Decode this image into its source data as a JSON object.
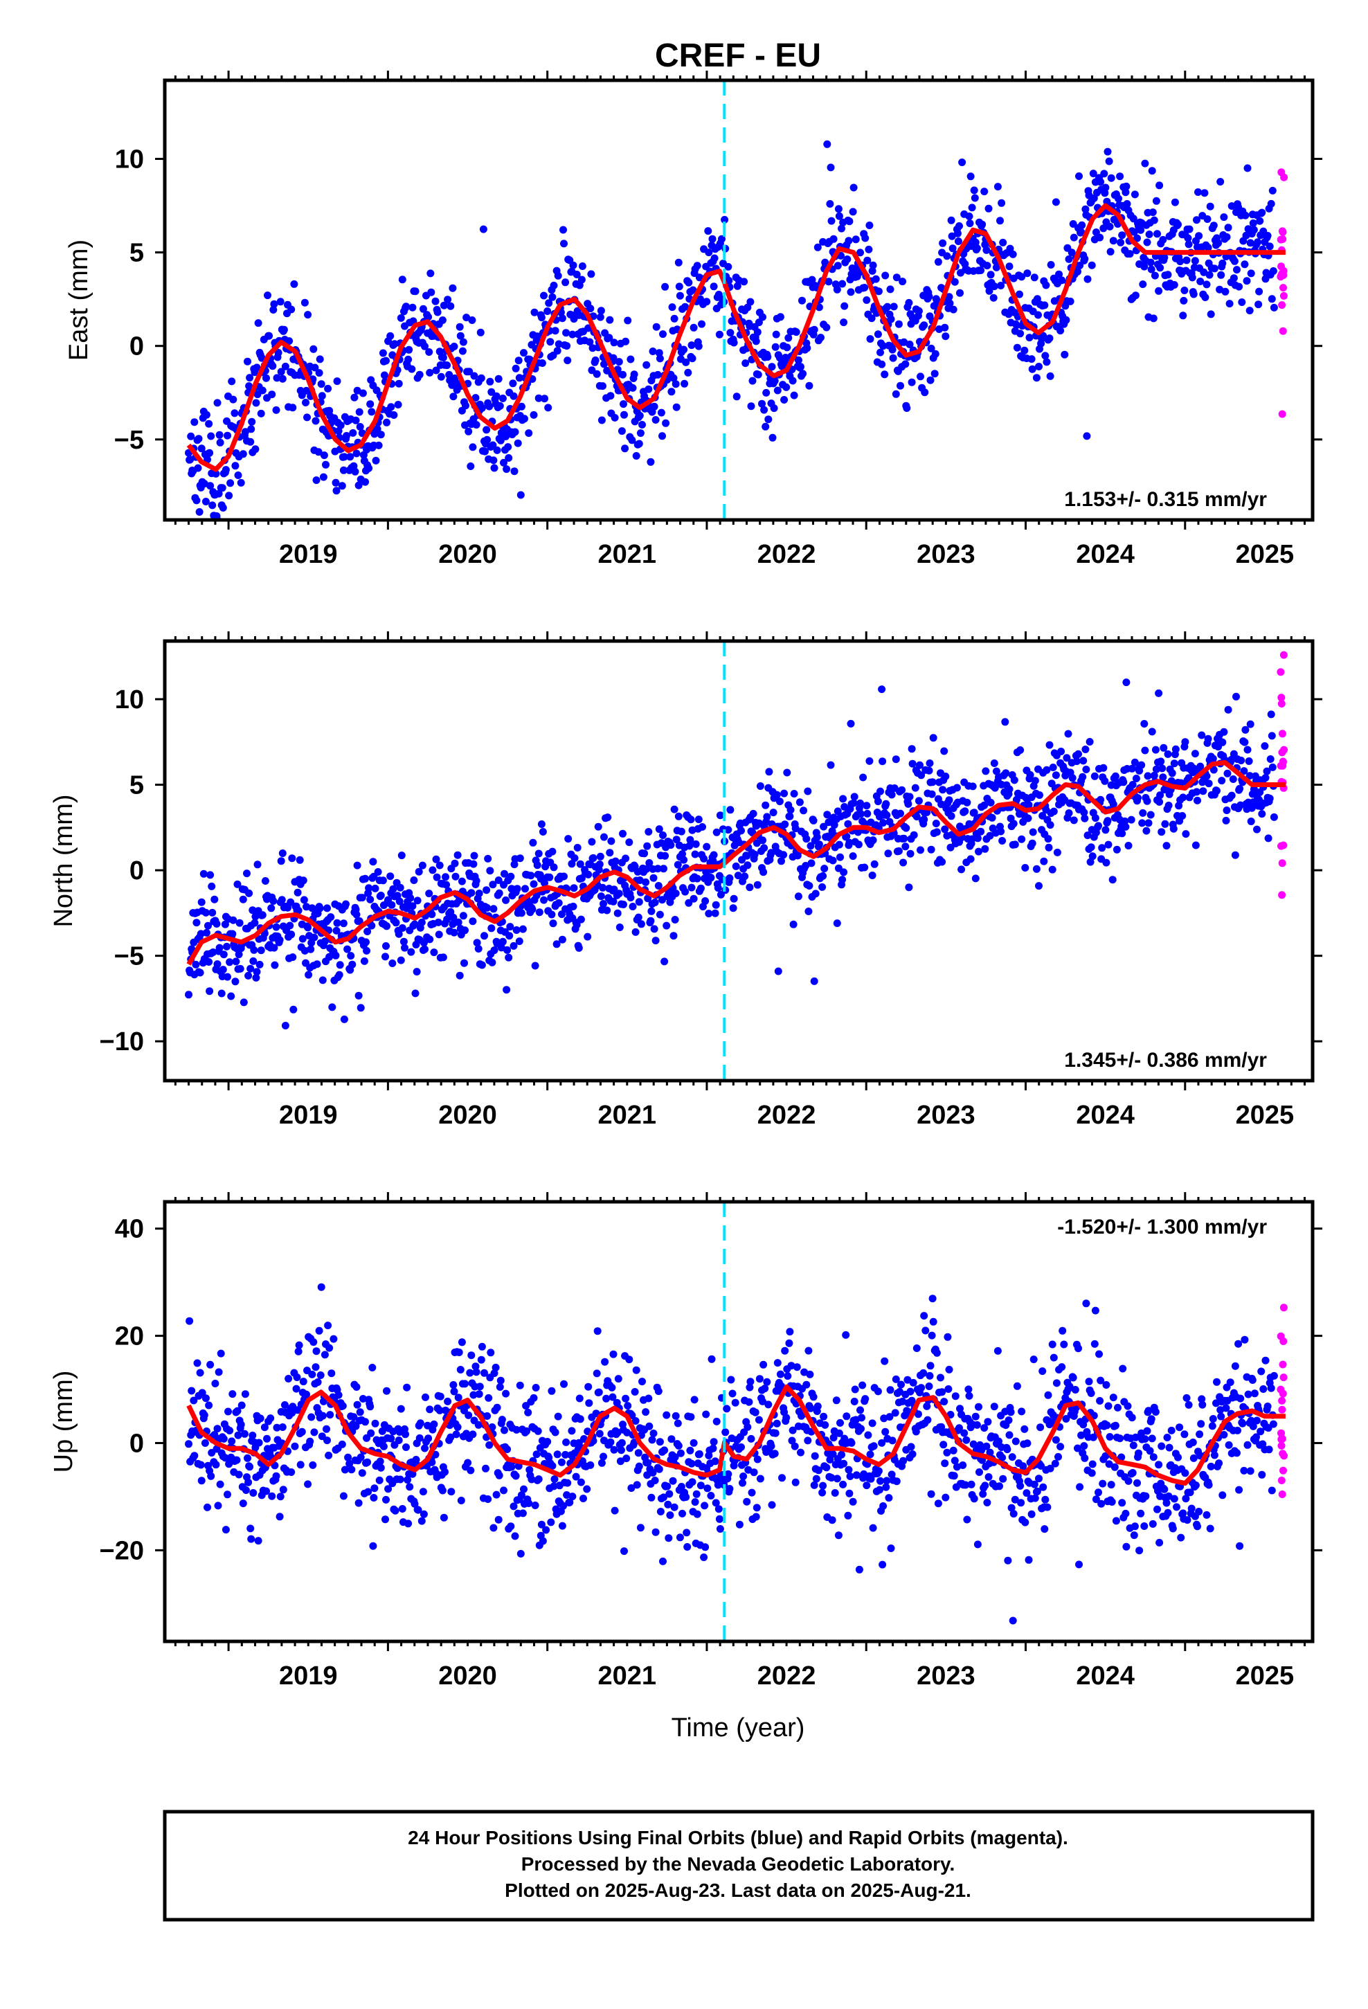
{
  "title": "CREF - EU",
  "xlabel": "Time (year)",
  "footer": {
    "line1": "24 Hour Positions Using Final Orbits (blue) and Rapid Orbits (magenta).",
    "line2": "Processed by the Nevada Geodetic Laboratory.",
    "line3": "Plotted on 2025-Aug-23. Last data on 2025-Aug-21."
  },
  "colors": {
    "final": "#0000ff",
    "rapid": "#ff00ff",
    "model": "#ff0000",
    "event": "#00e5ff"
  },
  "chart_data": [
    {
      "type": "scatter",
      "ylabel": "East (mm)",
      "rate": "1.153+/- 0.315 mm/yr",
      "xlim": [
        2018.6,
        2025.8
      ],
      "ylim": [
        -9.3,
        14.2
      ],
      "xticks": [
        2019,
        2020,
        2021,
        2022,
        2023,
        2024,
        2025
      ],
      "yticks": [
        -5,
        0,
        5,
        10
      ],
      "event_x": 2022.11,
      "model": {
        "x": [
          2018.75,
          2018.83,
          2018.92,
          2019.0,
          2019.08,
          2019.17,
          2019.25,
          2019.33,
          2019.42,
          2019.5,
          2019.58,
          2019.67,
          2019.75,
          2019.83,
          2019.92,
          2020.0,
          2020.08,
          2020.17,
          2020.25,
          2020.33,
          2020.42,
          2020.5,
          2020.58,
          2020.67,
          2020.75,
          2020.83,
          2020.92,
          2021.0,
          2021.08,
          2021.17,
          2021.25,
          2021.33,
          2021.42,
          2021.5,
          2021.58,
          2021.67,
          2021.75,
          2021.83,
          2021.92,
          2022.0,
          2022.08,
          2022.11,
          2022.17,
          2022.25,
          2022.33,
          2022.42,
          2022.5,
          2022.58,
          2022.67,
          2022.75,
          2022.83,
          2022.92,
          2023.0,
          2023.08,
          2023.17,
          2023.25,
          2023.33,
          2023.42,
          2023.5,
          2023.58,
          2023.67,
          2023.75,
          2023.83,
          2023.92,
          2024.0,
          2024.08,
          2024.17,
          2024.25,
          2024.33,
          2024.42,
          2024.5,
          2024.58,
          2024.67,
          2024.75,
          2024.83,
          2024.92,
          2025.0,
          2025.08,
          2025.17,
          2025.25,
          2025.33,
          2025.42,
          2025.5,
          2025.58,
          2025.63
        ],
        "y": [
          -5.3,
          -6.2,
          -6.6,
          -5.9,
          -4.2,
          -2.0,
          -0.5,
          0.2,
          -0.3,
          -1.8,
          -3.6,
          -5.0,
          -5.6,
          -5.3,
          -4.0,
          -2.0,
          -0.1,
          1.1,
          1.3,
          0.5,
          -1.0,
          -2.6,
          -3.8,
          -4.4,
          -4.0,
          -2.7,
          -0.8,
          1.0,
          2.2,
          2.5,
          1.7,
          0.2,
          -1.5,
          -2.8,
          -3.3,
          -2.8,
          -1.3,
          0.6,
          2.5,
          3.8,
          4.0,
          3.4,
          1.9,
          0.3,
          -1.0,
          -1.6,
          -1.3,
          0.0,
          2.0,
          4.0,
          5.2,
          5.0,
          3.8,
          2.0,
          0.3,
          -0.5,
          -0.3,
          1.0,
          3.0,
          5.0,
          6.2,
          6.0,
          4.7,
          2.8,
          1.2,
          0.7,
          1.3,
          3.0,
          5.0,
          6.8,
          7.5,
          7.0,
          5.6,
          5.0,
          5.0,
          5.0,
          5.0,
          5.0,
          5.0,
          5.0,
          5.0,
          5.0,
          5.0,
          5.0,
          5.0
        ]
      }
    },
    {
      "type": "scatter",
      "ylabel": "North (mm)",
      "rate": "1.345+/- 0.386 mm/yr",
      "xlim": [
        2018.6,
        2025.8
      ],
      "ylim": [
        -12.3,
        13.4
      ],
      "xticks": [
        2019,
        2020,
        2021,
        2022,
        2023,
        2024,
        2025
      ],
      "yticks": [
        -10,
        -5,
        0,
        5,
        10
      ],
      "event_x": 2022.11,
      "model": {
        "x": [
          2018.75,
          2018.83,
          2018.92,
          2019.0,
          2019.08,
          2019.17,
          2019.25,
          2019.33,
          2019.42,
          2019.5,
          2019.58,
          2019.67,
          2019.75,
          2019.83,
          2019.92,
          2020.0,
          2020.08,
          2020.17,
          2020.25,
          2020.33,
          2020.42,
          2020.5,
          2020.58,
          2020.67,
          2020.75,
          2020.83,
          2020.92,
          2021.0,
          2021.08,
          2021.17,
          2021.25,
          2021.33,
          2021.42,
          2021.5,
          2021.58,
          2021.67,
          2021.75,
          2021.83,
          2021.92,
          2022.0,
          2022.08,
          2022.11,
          2022.17,
          2022.25,
          2022.33,
          2022.42,
          2022.5,
          2022.58,
          2022.67,
          2022.75,
          2022.83,
          2022.92,
          2023.0,
          2023.08,
          2023.17,
          2023.25,
          2023.33,
          2023.42,
          2023.5,
          2023.58,
          2023.67,
          2023.75,
          2023.83,
          2023.92,
          2024.0,
          2024.08,
          2024.17,
          2024.25,
          2024.33,
          2024.42,
          2024.5,
          2024.58,
          2024.67,
          2024.75,
          2024.83,
          2024.92,
          2025.0,
          2025.08,
          2025.17,
          2025.25,
          2025.33,
          2025.42,
          2025.5,
          2025.58,
          2025.63
        ],
        "y": [
          -5.5,
          -4.2,
          -3.8,
          -4.0,
          -4.2,
          -3.8,
          -3.1,
          -2.7,
          -2.6,
          -2.9,
          -3.5,
          -4.2,
          -4.0,
          -3.3,
          -2.7,
          -2.4,
          -2.5,
          -2.8,
          -2.3,
          -1.6,
          -1.3,
          -1.7,
          -2.6,
          -3.0,
          -2.5,
          -1.8,
          -1.2,
          -1.0,
          -1.2,
          -1.5,
          -1.1,
          -0.4,
          -0.1,
          -0.4,
          -1.1,
          -1.5,
          -1.0,
          -0.3,
          0.2,
          0.2,
          0.2,
          0.4,
          0.9,
          1.5,
          2.2,
          2.5,
          2.1,
          1.2,
          0.8,
          1.3,
          2.1,
          2.5,
          2.5,
          2.2,
          2.4,
          3.1,
          3.7,
          3.6,
          2.8,
          2.1,
          2.4,
          3.3,
          3.8,
          3.9,
          3.5,
          3.6,
          4.4,
          5.0,
          4.9,
          4.1,
          3.4,
          3.6,
          4.5,
          5.0,
          5.2,
          4.9,
          4.8,
          5.5,
          6.2,
          6.3,
          5.7,
          5.0,
          5.0,
          5.0,
          5.0
        ]
      }
    },
    {
      "type": "scatter",
      "ylabel": "Up (mm)",
      "rate": "-1.520+/- 1.300 mm/yr",
      "xlim": [
        2018.6,
        2025.8
      ],
      "ylim": [
        -37.0,
        45.0
      ],
      "xticks": [
        2019,
        2020,
        2021,
        2022,
        2023,
        2024,
        2025
      ],
      "yticks": [
        -20,
        0,
        20,
        40
      ],
      "event_x": 2022.11,
      "model": {
        "x": [
          2018.75,
          2018.83,
          2018.92,
          2019.0,
          2019.08,
          2019.17,
          2019.25,
          2019.33,
          2019.42,
          2019.5,
          2019.58,
          2019.67,
          2019.75,
          2019.83,
          2019.92,
          2020.0,
          2020.08,
          2020.17,
          2020.25,
          2020.33,
          2020.42,
          2020.5,
          2020.58,
          2020.67,
          2020.75,
          2020.83,
          2020.92,
          2021.0,
          2021.08,
          2021.17,
          2021.25,
          2021.33,
          2021.42,
          2021.5,
          2021.58,
          2021.67,
          2021.75,
          2021.83,
          2021.92,
          2022.0,
          2022.08,
          2022.11,
          2022.17,
          2022.25,
          2022.33,
          2022.42,
          2022.5,
          2022.58,
          2022.67,
          2022.75,
          2022.83,
          2022.92,
          2023.0,
          2023.08,
          2023.17,
          2023.25,
          2023.33,
          2023.42,
          2023.5,
          2023.58,
          2023.67,
          2023.75,
          2023.83,
          2023.92,
          2024.0,
          2024.08,
          2024.17,
          2024.25,
          2024.33,
          2024.42,
          2024.5,
          2024.58,
          2024.67,
          2024.75,
          2024.83,
          2024.92,
          2025.0,
          2025.08,
          2025.17,
          2025.25,
          2025.33,
          2025.42,
          2025.5,
          2025.58,
          2025.63
        ],
        "y": [
          7.0,
          2.0,
          0.0,
          -1.0,
          -1.0,
          -2.0,
          -4.0,
          -2.0,
          3.0,
          8.0,
          9.5,
          7.0,
          2.0,
          -1.0,
          -2.0,
          -2.5,
          -4.0,
          -5.0,
          -3.0,
          2.0,
          7.0,
          8.0,
          5.0,
          0.0,
          -3.0,
          -3.5,
          -4.0,
          -5.0,
          -6.0,
          -4.0,
          0.0,
          5.0,
          6.5,
          5.0,
          0.0,
          -3.0,
          -4.0,
          -4.5,
          -5.5,
          -6.0,
          -5.0,
          0.0,
          -2.5,
          -3.0,
          0.0,
          6.0,
          10.5,
          8.0,
          3.0,
          -1.0,
          -1.0,
          -1.5,
          -3.0,
          -4.0,
          -2.0,
          3.0,
          8.0,
          8.5,
          5.0,
          0.0,
          -2.0,
          -2.5,
          -3.5,
          -5.0,
          -5.5,
          -3.0,
          2.0,
          7.0,
          7.5,
          4.0,
          -1.0,
          -3.5,
          -4.0,
          -4.5,
          -6.0,
          -7.0,
          -7.5,
          -5.0,
          0.0,
          4.0,
          5.5,
          6.0,
          5.0,
          5.0,
          5.0
        ]
      }
    }
  ]
}
